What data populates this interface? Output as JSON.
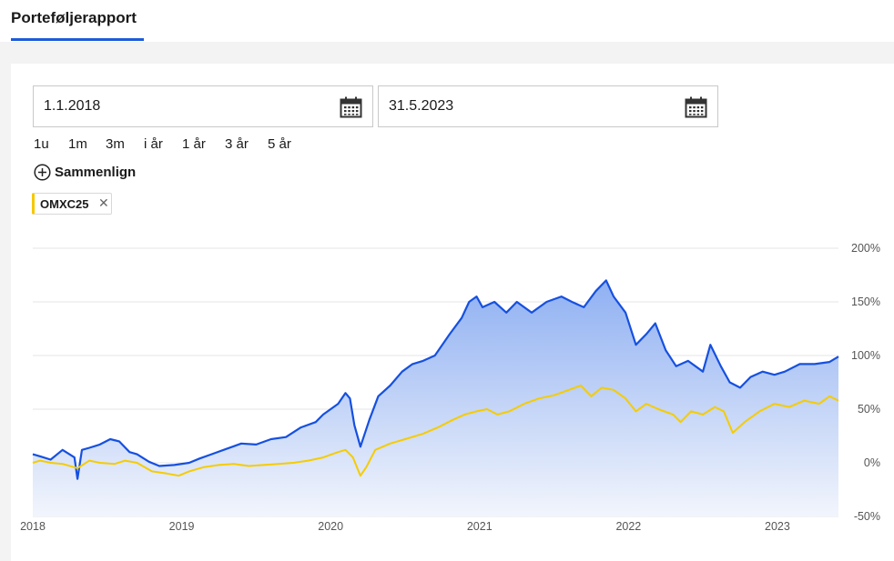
{
  "tabs": {
    "active_label": "Porteføljerapport"
  },
  "date_range": {
    "start": "1.1.2018",
    "end": "31.5.2023"
  },
  "periods": [
    "1u",
    "1m",
    "3m",
    "i år",
    "1 år",
    "3 år",
    "5 år"
  ],
  "compare": {
    "label": "Sammenlign"
  },
  "comparison_chip": {
    "label": "OMXC25"
  },
  "colors": {
    "portfolio": "#1550e0",
    "benchmark": "#f5cc00",
    "accent": "#1c5bd9"
  },
  "chart_data": {
    "type": "line",
    "y_ticks": [
      "200%",
      "150%",
      "100%",
      "50%",
      "0%",
      "-50%"
    ],
    "y_tick_values": [
      200,
      150,
      100,
      50,
      0,
      -50
    ],
    "x_ticks": [
      "2018",
      "2019",
      "2020",
      "2021",
      "2022",
      "2023"
    ],
    "x_tick_values": [
      2018.0,
      2019.0,
      2020.0,
      2021.0,
      2022.0,
      2023.0
    ],
    "xlim": [
      2018.0,
      2023.41
    ],
    "ylim": [
      -50,
      200
    ],
    "grid": true,
    "series": [
      {
        "style": "area",
        "color": "#1550e0",
        "points": [
          [
            2018.0,
            8
          ],
          [
            2018.05,
            6
          ],
          [
            2018.12,
            3
          ],
          [
            2018.2,
            12
          ],
          [
            2018.28,
            5
          ],
          [
            2018.3,
            -15
          ],
          [
            2018.33,
            12
          ],
          [
            2018.38,
            14
          ],
          [
            2018.45,
            17
          ],
          [
            2018.52,
            22
          ],
          [
            2018.58,
            20
          ],
          [
            2018.65,
            10
          ],
          [
            2018.7,
            8
          ],
          [
            2018.78,
            1
          ],
          [
            2018.85,
            -3
          ],
          [
            2018.95,
            -2
          ],
          [
            2019.05,
            0
          ],
          [
            2019.12,
            4
          ],
          [
            2019.2,
            8
          ],
          [
            2019.3,
            13
          ],
          [
            2019.4,
            18
          ],
          [
            2019.5,
            17
          ],
          [
            2019.6,
            22
          ],
          [
            2019.7,
            24
          ],
          [
            2019.8,
            33
          ],
          [
            2019.9,
            38
          ],
          [
            2019.95,
            45
          ],
          [
            2020.05,
            55
          ],
          [
            2020.1,
            65
          ],
          [
            2020.13,
            60
          ],
          [
            2020.16,
            35
          ],
          [
            2020.2,
            15
          ],
          [
            2020.26,
            40
          ],
          [
            2020.32,
            62
          ],
          [
            2020.4,
            72
          ],
          [
            2020.48,
            85
          ],
          [
            2020.55,
            92
          ],
          [
            2020.62,
            95
          ],
          [
            2020.7,
            100
          ],
          [
            2020.8,
            120
          ],
          [
            2020.88,
            135
          ],
          [
            2020.93,
            150
          ],
          [
            2020.98,
            155
          ],
          [
            2021.02,
            145
          ],
          [
            2021.1,
            150
          ],
          [
            2021.18,
            140
          ],
          [
            2021.25,
            150
          ],
          [
            2021.35,
            140
          ],
          [
            2021.45,
            150
          ],
          [
            2021.55,
            155
          ],
          [
            2021.62,
            150
          ],
          [
            2021.7,
            145
          ],
          [
            2021.78,
            160
          ],
          [
            2021.85,
            170
          ],
          [
            2021.9,
            155
          ],
          [
            2021.98,
            140
          ],
          [
            2022.05,
            110
          ],
          [
            2022.12,
            120
          ],
          [
            2022.18,
            130
          ],
          [
            2022.25,
            105
          ],
          [
            2022.32,
            90
          ],
          [
            2022.4,
            95
          ],
          [
            2022.5,
            85
          ],
          [
            2022.55,
            110
          ],
          [
            2022.62,
            90
          ],
          [
            2022.68,
            75
          ],
          [
            2022.75,
            70
          ],
          [
            2022.82,
            80
          ],
          [
            2022.9,
            85
          ],
          [
            2022.98,
            82
          ],
          [
            2023.05,
            85
          ],
          [
            2023.15,
            92
          ],
          [
            2023.25,
            92
          ],
          [
            2023.35,
            94
          ],
          [
            2023.41,
            99
          ]
        ]
      },
      {
        "style": "line",
        "color": "#f5cc00",
        "points": [
          [
            2018.0,
            0
          ],
          [
            2018.05,
            2
          ],
          [
            2018.12,
            0
          ],
          [
            2018.2,
            -1
          ],
          [
            2018.3,
            -5
          ],
          [
            2018.38,
            2
          ],
          [
            2018.45,
            0
          ],
          [
            2018.55,
            -1
          ],
          [
            2018.62,
            2
          ],
          [
            2018.7,
            0
          ],
          [
            2018.8,
            -8
          ],
          [
            2018.9,
            -10
          ],
          [
            2018.98,
            -12
          ],
          [
            2019.05,
            -8
          ],
          [
            2019.15,
            -4
          ],
          [
            2019.25,
            -2
          ],
          [
            2019.35,
            -1
          ],
          [
            2019.45,
            -3
          ],
          [
            2019.55,
            -2
          ],
          [
            2019.65,
            -1
          ],
          [
            2019.75,
            0
          ],
          [
            2019.85,
            2
          ],
          [
            2019.95,
            5
          ],
          [
            2020.05,
            10
          ],
          [
            2020.1,
            12
          ],
          [
            2020.15,
            5
          ],
          [
            2020.2,
            -12
          ],
          [
            2020.24,
            -4
          ],
          [
            2020.3,
            12
          ],
          [
            2020.4,
            18
          ],
          [
            2020.5,
            22
          ],
          [
            2020.62,
            27
          ],
          [
            2020.72,
            33
          ],
          [
            2020.82,
            40
          ],
          [
            2020.9,
            45
          ],
          [
            2020.98,
            48
          ],
          [
            2021.05,
            50
          ],
          [
            2021.12,
            45
          ],
          [
            2021.2,
            48
          ],
          [
            2021.3,
            55
          ],
          [
            2021.4,
            60
          ],
          [
            2021.5,
            63
          ],
          [
            2021.6,
            68
          ],
          [
            2021.68,
            72
          ],
          [
            2021.75,
            62
          ],
          [
            2021.82,
            70
          ],
          [
            2021.9,
            68
          ],
          [
            2021.98,
            60
          ],
          [
            2022.05,
            48
          ],
          [
            2022.12,
            55
          ],
          [
            2022.2,
            50
          ],
          [
            2022.3,
            45
          ],
          [
            2022.35,
            38
          ],
          [
            2022.42,
            48
          ],
          [
            2022.5,
            45
          ],
          [
            2022.58,
            52
          ],
          [
            2022.64,
            48
          ],
          [
            2022.7,
            28
          ],
          [
            2022.78,
            38
          ],
          [
            2022.88,
            48
          ],
          [
            2022.98,
            55
          ],
          [
            2023.08,
            52
          ],
          [
            2023.18,
            58
          ],
          [
            2023.28,
            55
          ],
          [
            2023.35,
            62
          ],
          [
            2023.41,
            58
          ]
        ]
      }
    ]
  }
}
